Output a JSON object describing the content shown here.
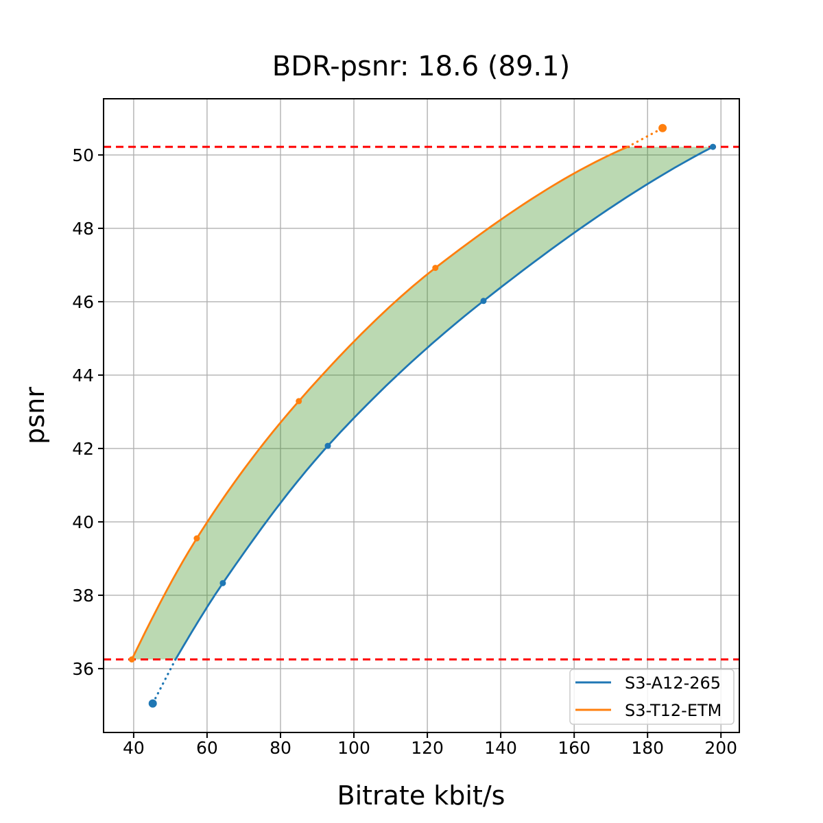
{
  "title": "BDR-psnr: 18.6 (89.1)",
  "chart_data": {
    "type": "line",
    "title": "BDR-psnr: 18.6 (89.1)",
    "xlabel": "Bitrate kbit/s",
    "ylabel": "psnr",
    "xlim": [
      31.8,
      205.0
    ],
    "ylim": [
      34.26,
      51.53
    ],
    "xticks": [
      40,
      60,
      80,
      100,
      120,
      140,
      160,
      180,
      200
    ],
    "yticks": [
      36,
      38,
      40,
      42,
      44,
      46,
      48,
      50
    ],
    "grid": true,
    "grid_color": "#b0b0b0",
    "legend_position": "lower right",
    "hlines": {
      "values": [
        36.25,
        50.22
      ],
      "color": "#ff0000",
      "style": "dashed"
    },
    "fill_between": {
      "color": "rgba(60, 145, 35, 0.35)",
      "description": "shaded BD gap between the two rate-distortion curves, clipped to the overlapping psnr interval [36.25, 50.22]"
    },
    "series": [
      {
        "name": "S3-A12-265",
        "color": "#1f77b4",
        "points": [
          [
            45.2,
            35.05
          ],
          [
            64.3,
            38.33
          ],
          [
            92.9,
            42.07
          ],
          [
            135.3,
            46.02
          ],
          [
            197.8,
            50.22
          ]
        ],
        "solid_anchors": [
          [
            51.4,
            36.25
          ],
          [
            64.3,
            38.33
          ],
          [
            92.9,
            42.07
          ],
          [
            135.3,
            46.02
          ],
          [
            197.8,
            50.22
          ]
        ],
        "dotted_extension": [
          [
            51.4,
            36.25
          ],
          [
            45.2,
            35.05
          ]
        ]
      },
      {
        "name": "S3-T12-ETM",
        "color": "#ff7f0e",
        "points": [
          [
            39.5,
            36.25
          ],
          [
            57.2,
            39.55
          ],
          [
            85.0,
            43.29
          ],
          [
            122.2,
            46.92
          ],
          [
            184.1,
            50.73
          ]
        ],
        "solid_anchors": [
          [
            39.5,
            36.25
          ],
          [
            57.2,
            39.55
          ],
          [
            85.0,
            43.29
          ],
          [
            122.2,
            46.92
          ],
          [
            174.6,
            50.22
          ]
        ],
        "dotted_extension": [
          [
            174.6,
            50.22
          ],
          [
            184.1,
            50.73
          ]
        ]
      }
    ]
  },
  "legend": {
    "items": [
      {
        "label": "S3-A12-265",
        "color": "#1f77b4"
      },
      {
        "label": "S3-T12-ETM",
        "color": "#ff7f0e"
      }
    ]
  }
}
